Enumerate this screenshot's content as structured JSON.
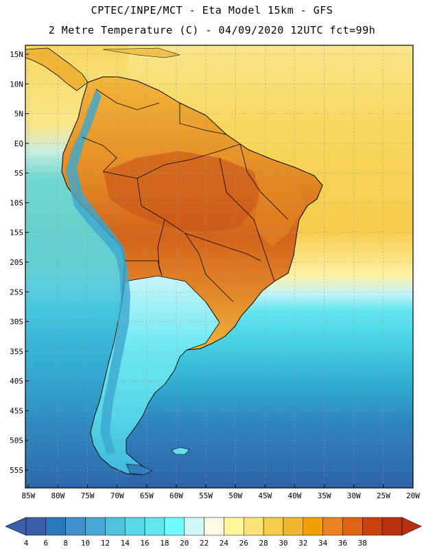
{
  "header": {
    "title_line1": "CPTEC/INPE/MCT -  Eta Model 15km - GFS",
    "title_line2": "2 Metre Temperature (C) - 04/09/2020 12UTC fct=99h"
  },
  "map": {
    "lat_labels": [
      "15N",
      "10N",
      "5N",
      "EQ",
      "5S",
      "10S",
      "15S",
      "20S",
      "25S",
      "30S",
      "35S",
      "40S",
      "45S",
      "50S",
      "55S"
    ],
    "lat_values": [
      15,
      10,
      5,
      0,
      -5,
      -10,
      -15,
      -20,
      -25,
      -30,
      -35,
      -40,
      -45,
      -50,
      -55
    ],
    "lon_labels": [
      "85W",
      "80W",
      "75W",
      "70W",
      "65W",
      "60W",
      "55W",
      "50W",
      "45W",
      "40W",
      "35W",
      "30W",
      "25W",
      "20W"
    ],
    "lon_values": [
      -85,
      -80,
      -75,
      -70,
      -65,
      -60,
      -55,
      -50,
      -45,
      -40,
      -35,
      -30,
      -25,
      -20
    ],
    "extent": {
      "lon_min": -85.5,
      "lon_max": -20,
      "lat_min": -58,
      "lat_max": 16.5
    },
    "colors": {
      "ocean_north": "#fbe58b",
      "ocean_tropics": "#f6ce4e",
      "ocean_cool": "#4fdde6",
      "ocean_mid": "#2fb7d4",
      "ocean_south": "#2f72ae",
      "land_hot": "#e2851f",
      "land_very_hot": "#c7551a",
      "land_warm": "#f0b231",
      "land_mild": "#fbe37b",
      "andes_cold": "#3aa8cf",
      "southern_land": "#66e6f0",
      "border": "#000000",
      "grid": "#9a9a9a"
    }
  },
  "colorbar": {
    "values": [
      4,
      6,
      8,
      10,
      12,
      14,
      16,
      18,
      20,
      22,
      24,
      26,
      28,
      30,
      32,
      34,
      36,
      38
    ],
    "colors": [
      "#3a5fa8",
      "#2d78b8",
      "#3e91c9",
      "#45a9d3",
      "#4fc3de",
      "#59d7e5",
      "#62e6ef",
      "#73fbff",
      "#d2f7fb",
      "#fff9e6",
      "#fff59a",
      "#fbe37a",
      "#f6cd47",
      "#f0b72f",
      "#f0a000",
      "#ea8220",
      "#e06215",
      "#c8430e",
      "#b8310f"
    ],
    "low_arrow_color": "#3a5fa8",
    "high_arrow_color": "#b8310f"
  }
}
